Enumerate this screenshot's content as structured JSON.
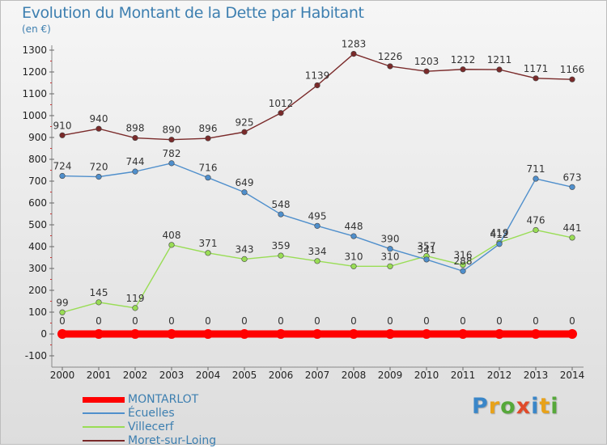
{
  "title": "Evolution du Montant de la Dette par Habitant",
  "unit": "(en €)",
  "brand": {
    "text": "Proxiti",
    "colors": [
      "#3a86c8",
      "#e8a21a",
      "#56a83a",
      "#e04a2a",
      "#3a86c8",
      "#e8a21a",
      "#56a83a"
    ]
  },
  "chart_data": {
    "type": "line",
    "x": [
      "2000",
      "2001",
      "2002",
      "2003",
      "2004",
      "2005",
      "2006",
      "2007",
      "2008",
      "2009",
      "2010",
      "2011",
      "2012",
      "2013",
      "2014"
    ],
    "ylim": [
      -100,
      1300
    ],
    "yticks": [
      -100,
      0,
      100,
      200,
      300,
      400,
      500,
      600,
      700,
      800,
      900,
      1000,
      1100,
      1200,
      1300
    ],
    "grid": false,
    "legend_position": "bottom-left",
    "series": [
      {
        "name": "MONTARLOT",
        "color": "#ff0000",
        "values": [
          0,
          0,
          0,
          0,
          0,
          0,
          0,
          0,
          0,
          0,
          0,
          0,
          0,
          0,
          0
        ]
      },
      {
        "name": "Écuelles",
        "color": "#4f8fcc",
        "values": [
          724,
          720,
          744,
          782,
          716,
          649,
          548,
          495,
          448,
          390,
          341,
          288,
          412,
          711,
          673
        ]
      },
      {
        "name": "Villecerf",
        "color": "#99dd55",
        "values": [
          99,
          145,
          119,
          408,
          371,
          343,
          359,
          334,
          310,
          310,
          357,
          316,
          419,
          476,
          441
        ]
      },
      {
        "name": "Moret-sur-Loing",
        "color": "#7a2a2a",
        "values": [
          910,
          940,
          898,
          890,
          896,
          925,
          1012,
          1139,
          1283,
          1226,
          1203,
          1212,
          1211,
          1171,
          1166
        ]
      }
    ]
  }
}
